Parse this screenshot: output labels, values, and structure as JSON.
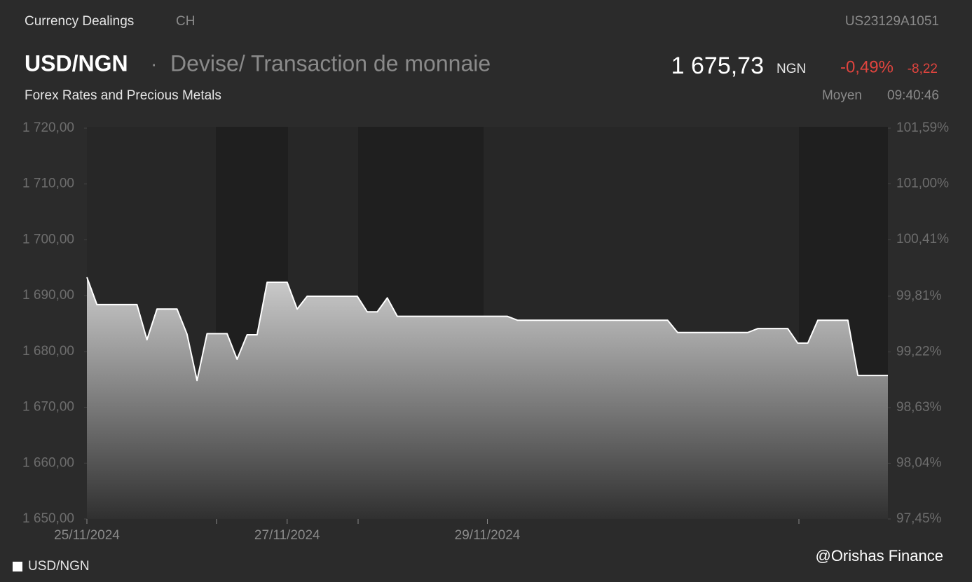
{
  "header": {
    "source": "Currency Dealings",
    "exchange": "CH",
    "isin": "US23129A1051",
    "symbol": "USD/NGN",
    "separator": "·",
    "description": "Devise/ Transaction de monnaie",
    "category": "Forex Rates and Precious Metals",
    "price": "1 675,73",
    "currency": "NGN",
    "change_pct": "-0,49%",
    "change_abs": "-8,22",
    "price_type": "Moyen",
    "time": "09:40:46"
  },
  "watermark": "@Orishas Finance",
  "chart_data": {
    "type": "area",
    "categories": [
      "25/11/2024",
      null,
      null,
      null,
      null,
      null,
      null,
      null,
      null,
      null,
      null,
      null,
      null,
      null,
      null,
      null,
      null,
      null,
      null,
      null,
      "27/11/2024",
      null,
      null,
      null,
      null,
      null,
      null,
      null,
      null,
      null,
      null,
      null,
      null,
      null,
      null,
      null,
      null,
      null,
      null,
      null,
      "29/11/2024",
      null,
      null,
      null,
      null,
      null,
      null,
      null,
      null,
      null,
      null,
      null,
      null,
      null,
      null,
      null,
      null,
      null,
      null,
      null,
      null,
      null,
      null,
      null,
      null,
      null,
      null,
      null,
      null,
      null,
      null,
      null,
      null,
      null,
      null,
      null,
      null,
      null,
      null,
      null,
      null
    ],
    "series": [
      {
        "name": "USD/NGN",
        "color": "#ffffff",
        "values": [
          1693.3,
          1688.4,
          1688.4,
          1688.4,
          1688.4,
          1688.4,
          1682.1,
          1687.6,
          1687.6,
          1687.6,
          1683.1,
          1674.8,
          1683.2,
          1683.2,
          1683.2,
          1678.6,
          1683.0,
          1683.0,
          1692.4,
          1692.4,
          1692.4,
          1687.6,
          1689.9,
          1689.9,
          1689.9,
          1689.9,
          1689.9,
          1689.9,
          1687.1,
          1687.1,
          1689.6,
          1686.3,
          1686.3,
          1686.3,
          1686.3,
          1686.3,
          1686.3,
          1686.3,
          1686.3,
          1686.3,
          1686.3,
          1686.3,
          1686.3,
          1685.6,
          1685.6,
          1685.6,
          1685.6,
          1685.6,
          1685.6,
          1685.6,
          1685.6,
          1685.6,
          1685.6,
          1685.6,
          1685.6,
          1685.6,
          1685.6,
          1685.6,
          1685.6,
          1683.4,
          1683.4,
          1683.4,
          1683.4,
          1683.4,
          1683.4,
          1683.4,
          1683.4,
          1684.1,
          1684.1,
          1684.1,
          1684.1,
          1681.5,
          1681.5,
          1685.6,
          1685.6,
          1685.6,
          1685.6,
          1675.7,
          1675.7,
          1675.7,
          1675.7
        ]
      }
    ],
    "ylim": [
      1650,
      1720
    ],
    "yticks": [
      {
        "value": 1720,
        "label": "1 720,00"
      },
      {
        "value": 1710,
        "label": "1 710,00"
      },
      {
        "value": 1700,
        "label": "1 700,00"
      },
      {
        "value": 1690,
        "label": "1 690,00"
      },
      {
        "value": 1680,
        "label": "1 680,00"
      },
      {
        "value": 1670,
        "label": "1 670,00"
      },
      {
        "value": 1660,
        "label": "1 660,00"
      },
      {
        "value": 1650,
        "label": "1 650,00"
      }
    ],
    "y2lim": [
      97.45,
      101.59
    ],
    "y2ticks": [
      {
        "value": 101.59,
        "label": "101,59%"
      },
      {
        "value": 101.0,
        "label": "101,00%"
      },
      {
        "value": 100.41,
        "label": "100,41%"
      },
      {
        "value": 99.81,
        "label": "99,81%"
      },
      {
        "value": 99.22,
        "label": "99,22%"
      },
      {
        "value": 98.63,
        "label": "98,63%"
      },
      {
        "value": 98.04,
        "label": "98,04%"
      },
      {
        "value": 97.45,
        "label": "97,45%"
      }
    ],
    "grid": false
  }
}
